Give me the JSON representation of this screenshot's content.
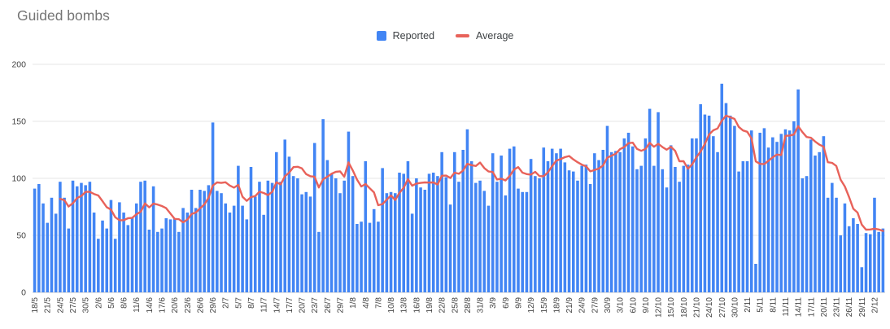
{
  "title": "Guided bombs",
  "legend": {
    "reported_label": "Reported",
    "average_label": "Average"
  },
  "colors": {
    "reported": "#4285f4",
    "average": "#e8625a",
    "grid": "#e6e6e6",
    "baseline": "#c9c9c9",
    "title_text": "#757575",
    "axis_text": "#424242",
    "legend_text": "#3c4043"
  },
  "chart_data": {
    "type": "bar",
    "title": "Guided bombs",
    "xlabel": "",
    "ylabel": "",
    "ylim": [
      0,
      200
    ],
    "yticks": [
      0,
      50,
      100,
      150,
      200
    ],
    "grid": true,
    "legend_position": "top-center",
    "x_tick_every": 3,
    "x_tick_labels": [
      "18/5",
      "21/5",
      "24/5",
      "27/5",
      "30/5",
      "2/6",
      "5/6",
      "8/6",
      "11/6",
      "14/6",
      "17/6",
      "20/6",
      "23/6",
      "26/6",
      "29/6",
      "2/7",
      "5/7",
      "8/7",
      "11/7",
      "14/7",
      "17/7",
      "20/7",
      "23/7",
      "26/7",
      "29/7",
      "1/8",
      "4/8",
      "7/8",
      "10/8",
      "13/8",
      "16/8",
      "19/8",
      "22/8",
      "25/8",
      "28/8",
      "31/8",
      "3/9",
      "6/9",
      "9/9",
      "12/9",
      "15/9",
      "18/9",
      "21/9",
      "24/9",
      "27/9",
      "30/9",
      "3/10",
      "6/10",
      "9/10",
      "12/10",
      "15/10",
      "18/10",
      "21/10",
      "24/10",
      "27/10",
      "30/10",
      "2/11",
      "5/11",
      "8/11",
      "11/11",
      "14/11",
      "17/11",
      "20/11",
      "23/11",
      "26/11",
      "29/11",
      "2/12"
    ],
    "x": [
      "18/5",
      "19/5",
      "20/5",
      "21/5",
      "22/5",
      "23/5",
      "24/5",
      "25/5",
      "26/5",
      "27/5",
      "28/5",
      "29/5",
      "30/5",
      "31/5",
      "1/6",
      "2/6",
      "3/6",
      "4/6",
      "5/6",
      "6/6",
      "7/6",
      "8/6",
      "9/6",
      "10/6",
      "11/6",
      "12/6",
      "13/6",
      "14/6",
      "15/6",
      "16/6",
      "17/6",
      "18/6",
      "19/6",
      "20/6",
      "21/6",
      "22/6",
      "23/6",
      "24/6",
      "25/6",
      "26/6",
      "27/6",
      "28/6",
      "29/6",
      "30/6",
      "1/7",
      "2/7",
      "3/7",
      "4/7",
      "5/7",
      "6/7",
      "7/7",
      "8/7",
      "9/7",
      "10/7",
      "11/7",
      "12/7",
      "13/7",
      "14/7",
      "15/7",
      "16/7",
      "17/7",
      "18/7",
      "19/7",
      "20/7",
      "21/7",
      "22/7",
      "23/7",
      "24/7",
      "25/7",
      "26/7",
      "27/7",
      "28/7",
      "29/7",
      "30/7",
      "31/7",
      "1/8",
      "2/8",
      "3/8",
      "4/8",
      "5/8",
      "6/8",
      "7/8",
      "8/8",
      "9/8",
      "10/8",
      "11/8",
      "12/8",
      "13/8",
      "14/8",
      "15/8",
      "16/8",
      "17/8",
      "18/8",
      "19/8",
      "20/8",
      "21/8",
      "22/8",
      "23/8",
      "24/8",
      "25/8",
      "26/8",
      "27/8",
      "28/8",
      "29/8",
      "30/8",
      "31/8",
      "1/9",
      "2/9",
      "3/9",
      "4/9",
      "5/9",
      "6/9",
      "7/9",
      "8/9",
      "9/9",
      "10/9",
      "11/9",
      "12/9",
      "13/9",
      "14/9",
      "15/9",
      "16/9",
      "17/9",
      "18/9",
      "19/9",
      "20/9",
      "21/9",
      "22/9",
      "23/9",
      "24/9",
      "25/9",
      "26/9",
      "27/9",
      "28/9",
      "29/9",
      "30/9",
      "1/10",
      "2/10",
      "3/10",
      "4/10",
      "5/10",
      "6/10",
      "7/10",
      "8/10",
      "9/10",
      "10/10",
      "11/10",
      "12/10",
      "13/10",
      "14/10",
      "15/10",
      "16/10",
      "17/10",
      "18/10",
      "19/10",
      "20/10",
      "21/10",
      "22/10",
      "23/10",
      "24/10",
      "25/10",
      "26/10",
      "27/10",
      "28/10",
      "29/10",
      "30/10",
      "31/10",
      "1/11",
      "2/11",
      "3/11",
      "4/11",
      "5/11",
      "6/11",
      "7/11",
      "8/11",
      "9/11",
      "10/11",
      "11/11",
      "12/11",
      "13/11",
      "14/11",
      "15/11",
      "16/11",
      "17/11",
      "18/11",
      "19/11",
      "20/11",
      "21/11",
      "22/11",
      "23/11",
      "24/11",
      "25/11",
      "26/11",
      "27/11",
      "28/11",
      "29/11",
      "30/11",
      "1/12",
      "2/12",
      "3/12",
      "4/12"
    ],
    "series": [
      {
        "name": "Reported",
        "type": "bar",
        "values": [
          91,
          95,
          78,
          61,
          83,
          69,
          97,
          83,
          56,
          98,
          93,
          96,
          94,
          97,
          70,
          47,
          63,
          56,
          81,
          47,
          79,
          70,
          59,
          65,
          78,
          97,
          98,
          55,
          93,
          53,
          56,
          65,
          64,
          65,
          53,
          74,
          70,
          90,
          74,
          90,
          89,
          94,
          149,
          89,
          87,
          78,
          70,
          76,
          111,
          76,
          64,
          110,
          84,
          97,
          68,
          98,
          96,
          123,
          97,
          134,
          119,
          102,
          100,
          86,
          88,
          84,
          131,
          53,
          152,
          116,
          104,
          100,
          87,
          98,
          141,
          102,
          60,
          62,
          115,
          61,
          73,
          62,
          109,
          87,
          88,
          87,
          105,
          104,
          115,
          69,
          100,
          92,
          90,
          104,
          105,
          102,
          123,
          101,
          77,
          123,
          97,
          125,
          143,
          115,
          96,
          98,
          89,
          76,
          122,
          97,
          120,
          85,
          126,
          128,
          91,
          88,
          88,
          117,
          102,
          100,
          127,
          115,
          126,
          122,
          126,
          114,
          107,
          106,
          98,
          111,
          112,
          95,
          122,
          116,
          125,
          146,
          123,
          124,
          123,
          135,
          140,
          128,
          108,
          111,
          135,
          161,
          111,
          158,
          108,
          92,
          129,
          110,
          97,
          111,
          112,
          135,
          135,
          165,
          156,
          155,
          137,
          123,
          183,
          166,
          155,
          146,
          106,
          115,
          115,
          142,
          25,
          140,
          144,
          127,
          136,
          132,
          139,
          143,
          142,
          150,
          178,
          100,
          102,
          134,
          120,
          123,
          137,
          83,
          96,
          83,
          50,
          78,
          58,
          65,
          60,
          22,
          52,
          51,
          83,
          53,
          56
        ]
      },
      {
        "name": "Average",
        "type": "line",
        "derivation": "trailing mean of Reported",
        "window": 7
      }
    ]
  }
}
